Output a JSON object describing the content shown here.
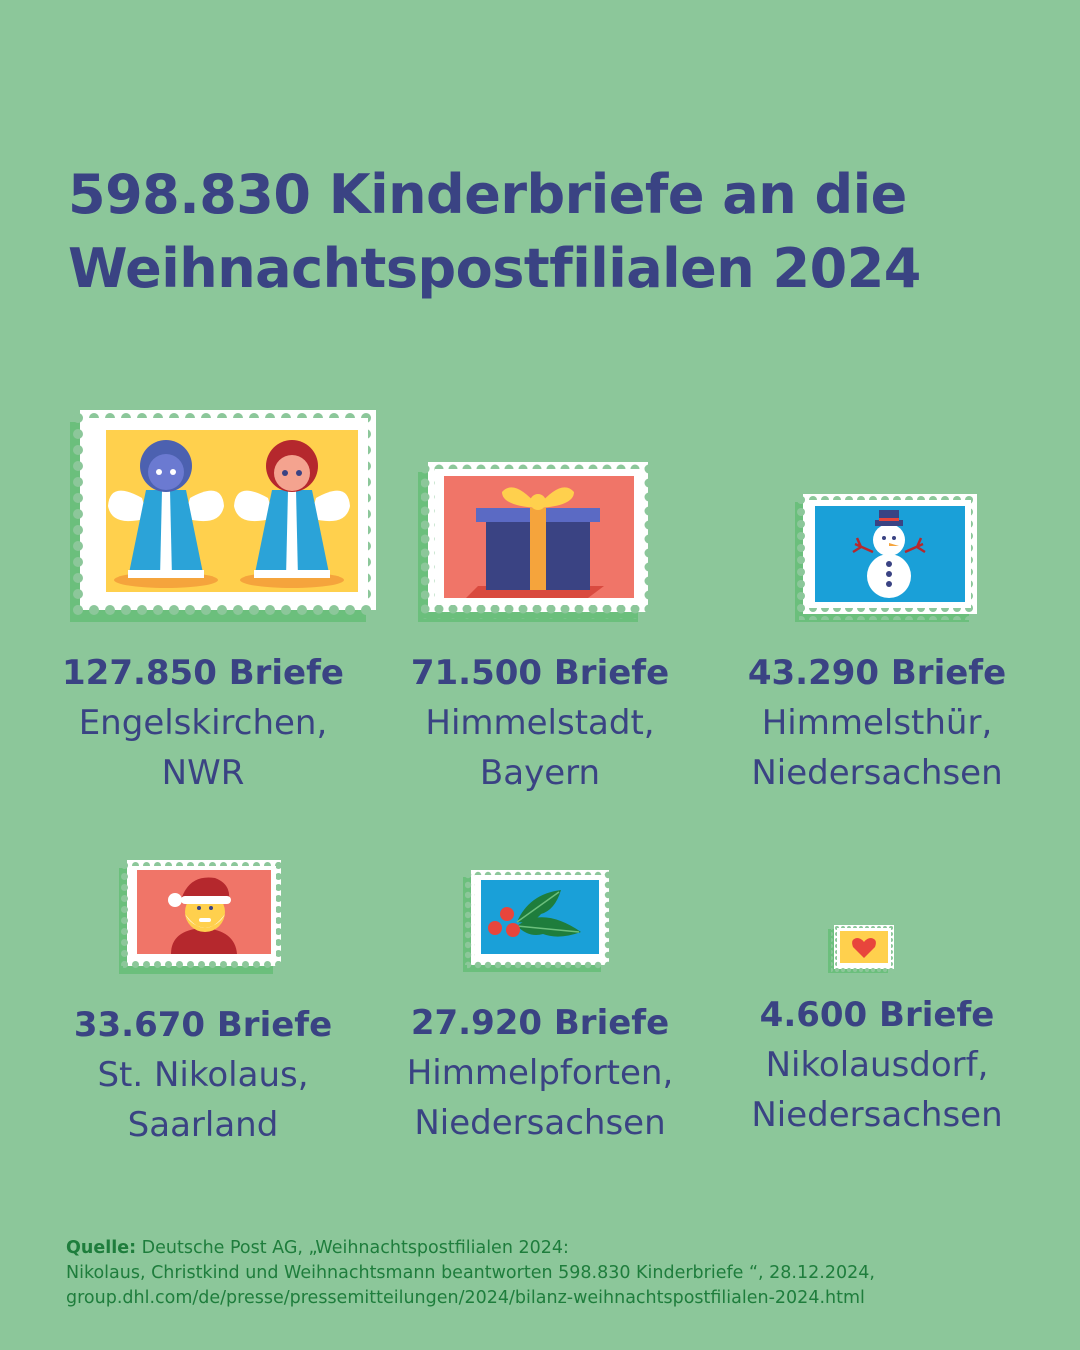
{
  "title": {
    "line1": "598.830 Kinderbriefe an die",
    "line2": "Weihnachtspostfilialen 2024"
  },
  "items": [
    {
      "count": "127.850 Briefe",
      "place_line1": "Engelskirchen,",
      "place_line2": "NWR",
      "stamp_icon": "angels-stamp-icon"
    },
    {
      "count": "71.500 Briefe",
      "place_line1": "Himmelstadt,",
      "place_line2": "Bayern",
      "stamp_icon": "gift-stamp-icon"
    },
    {
      "count": "43.290 Briefe",
      "place_line1": "Himmelsthür,",
      "place_line2": "Niedersachsen",
      "stamp_icon": "snowman-stamp-icon"
    },
    {
      "count": "33.670 Briefe",
      "place_line1": "St. Nikolaus,",
      "place_line2": "Saarland",
      "stamp_icon": "santa-stamp-icon"
    },
    {
      "count": "27.920 Briefe",
      "place_line1": "Himmelpforten,",
      "place_line2": "Niedersachsen",
      "stamp_icon": "holly-stamp-icon"
    },
    {
      "count": "4.600 Briefe",
      "place_line1": "Nikolausdorf,",
      "place_line2": "Niedersachsen",
      "stamp_icon": "heart-stamp-icon"
    }
  ],
  "source": {
    "label": "Quelle:",
    "line1": " Deutsche Post AG, „Weihnachtspostfilialen 2024:",
    "line2": "Nikolaus, Christkind und Weihnachtsmann beantworten 598.830 Kinderbriefe “, 28.12.2024,",
    "line3": "group.dhl.com/de/presse/pressemitteilungen/2024/bilanz-weihnachtspostfilialen-2024.html"
  },
  "colors": {
    "background": "#8cc79a",
    "title_text": "#3a4383",
    "source_text": "#1e7d3c",
    "stamp_shadow": "#6bbf7c"
  }
}
